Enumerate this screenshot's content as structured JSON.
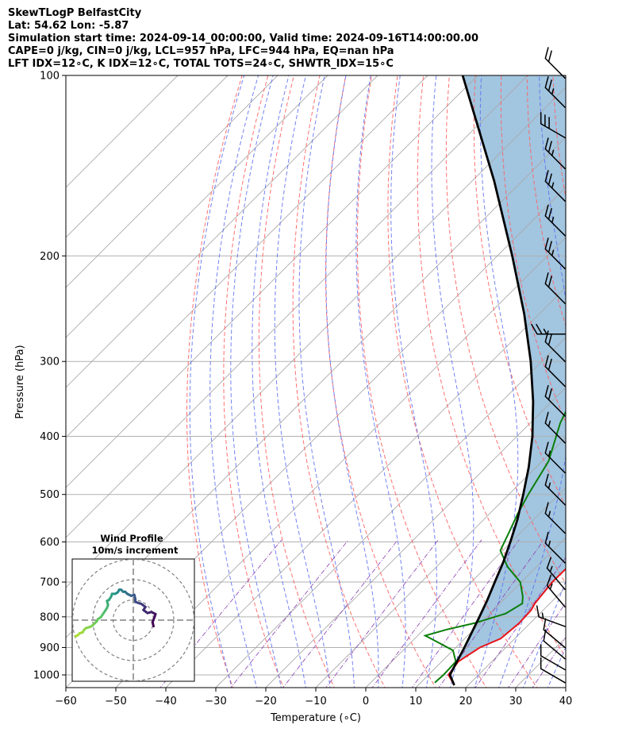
{
  "header": {
    "line1": "SkewTLogP BelfastCity",
    "line2": "Lat: 54.62   Lon: -5.87",
    "line3": "Simulation start time: 2024-09-14_00:00:00, Valid time: 2024-09-16T14:00:00.00",
    "line4": "CAPE=0 j/kg, CIN=0 j/kg, LCL=957 hPa, LFC=944 hPa, EQ=nan hPa",
    "line5": "LFT IDX=12∘C, K IDX=12∘C, TOTAL TOTS=24∘C, SHWTR_IDX=15∘C"
  },
  "chart_data": {
    "type": "skewt",
    "xlabel": "Temperature (∘C)",
    "ylabel": "Pressure (hPa)",
    "xlim": [
      -60,
      40
    ],
    "ylim": [
      1050,
      100
    ],
    "x_ticks": [
      "−60",
      "−50",
      "−40",
      "−30",
      "−20",
      "−10",
      "0",
      "10",
      "20",
      "30",
      "40"
    ],
    "x_tick_values": [
      -60,
      -50,
      -40,
      -30,
      -20,
      -10,
      0,
      10,
      20,
      30,
      40
    ],
    "y_ticks": [
      "100",
      "200",
      "300",
      "400",
      "500",
      "600",
      "700",
      "800",
      "900",
      "1000"
    ],
    "y_tick_values": [
      100,
      200,
      300,
      400,
      500,
      600,
      700,
      800,
      900,
      1000
    ],
    "temperature": [
      [
        1040,
        17.2
      ],
      [
        1000,
        14
      ],
      [
        950,
        13.3
      ],
      [
        900,
        14.8
      ],
      [
        870,
        17.2
      ],
      [
        820,
        17.8
      ],
      [
        780,
        17.6
      ],
      [
        760,
        17
      ],
      [
        700,
        16.2
      ],
      [
        650,
        16.3
      ],
      [
        600,
        15.5
      ],
      [
        550,
        13.8
      ],
      [
        500,
        11.5
      ],
      [
        450,
        8
      ],
      [
        400,
        3.5
      ],
      [
        350,
        -2.5
      ],
      [
        300,
        -9.5
      ],
      [
        280,
        -12.8
      ],
      [
        260,
        -15.8
      ],
      [
        240,
        -20
      ],
      [
        210,
        -26.7
      ],
      [
        190,
        -31.7
      ],
      [
        180,
        -34
      ],
      [
        170,
        -35
      ],
      [
        160,
        -35.7
      ],
      [
        150,
        -36.5
      ],
      [
        140,
        -37.2
      ],
      [
        130,
        -36.6
      ],
      [
        120,
        -37.5
      ],
      [
        115,
        -36
      ],
      [
        110,
        -35.5
      ],
      [
        105,
        -36.3
      ],
      [
        100,
        -35.7
      ]
    ],
    "dewpoint": [
      [
        1030,
        12.8
      ],
      [
        1000,
        13
      ],
      [
        950,
        12.8
      ],
      [
        910,
        10
      ],
      [
        880,
        5
      ],
      [
        860,
        1.5
      ],
      [
        840,
        4.6
      ],
      [
        820,
        8.8
      ],
      [
        790,
        13.2
      ],
      [
        760,
        14.5
      ],
      [
        740,
        13.2
      ],
      [
        700,
        9.8
      ],
      [
        660,
        4.2
      ],
      [
        620,
        -0.5
      ],
      [
        580,
        -2.3
      ],
      [
        540,
        -4.3
      ],
      [
        500,
        -6.1
      ],
      [
        440,
        -8.7
      ],
      [
        380,
        -14
      ],
      [
        350,
        -16.2
      ],
      [
        320,
        -12.3
      ],
      [
        295,
        -6.3
      ],
      [
        285,
        -6.8
      ],
      [
        270,
        -10.5
      ],
      [
        250,
        -14.2
      ],
      [
        235,
        -15
      ],
      [
        210,
        -19.5
      ],
      [
        200,
        -21.5
      ],
      [
        190,
        -23
      ],
      [
        170,
        -27.5
      ],
      [
        150,
        -29.5
      ],
      [
        130,
        -29.3
      ],
      [
        117,
        -26.2
      ],
      [
        113,
        -26.7
      ],
      [
        106,
        -29.2
      ],
      [
        100,
        -29.3
      ]
    ],
    "parcel": [
      [
        1040,
        17.2
      ],
      [
        1000,
        14.3
      ],
      [
        957,
        13.2
      ],
      [
        900,
        11.7
      ],
      [
        850,
        10.2
      ],
      [
        800,
        8.6
      ],
      [
        750,
        6.8
      ],
      [
        700,
        4.7
      ],
      [
        650,
        2.5
      ],
      [
        600,
        -0.2
      ],
      [
        550,
        -3.3
      ],
      [
        500,
        -7.1
      ],
      [
        450,
        -11.5
      ],
      [
        400,
        -16.9
      ],
      [
        350,
        -23.7
      ],
      [
        300,
        -32.2
      ],
      [
        250,
        -43
      ],
      [
        200,
        -57
      ],
      [
        150,
        -75.6
      ],
      [
        100,
        -103
      ]
    ],
    "wind_barbs": [
      {
        "p": 1030,
        "speed_kt": 10,
        "dir": 300
      },
      {
        "p": 980,
        "speed_kt": 10,
        "dir": 300
      },
      {
        "p": 940,
        "speed_kt": 10,
        "dir": 310
      },
      {
        "p": 900,
        "speed_kt": 10,
        "dir": 310
      },
      {
        "p": 830,
        "speed_kt": 15,
        "dir": 290
      },
      {
        "p": 770,
        "speed_kt": 15,
        "dir": 320
      },
      {
        "p": 720,
        "speed_kt": 15,
        "dir": 320
      },
      {
        "p": 650,
        "speed_kt": 15,
        "dir": 315
      },
      {
        "p": 580,
        "speed_kt": 15,
        "dir": 315
      },
      {
        "p": 520,
        "speed_kt": 15,
        "dir": 315
      },
      {
        "p": 460,
        "speed_kt": 15,
        "dir": 315
      },
      {
        "p": 410,
        "speed_kt": 15,
        "dir": 315
      },
      {
        "p": 370,
        "speed_kt": 20,
        "dir": 315
      },
      {
        "p": 330,
        "speed_kt": 20,
        "dir": 315
      },
      {
        "p": 300,
        "speed_kt": 20,
        "dir": 315
      },
      {
        "p": 270,
        "speed_kt": 25,
        "dir": 270
      },
      {
        "p": 240,
        "speed_kt": 20,
        "dir": 315
      },
      {
        "p": 210,
        "speed_kt": 25,
        "dir": 315
      },
      {
        "p": 185,
        "speed_kt": 25,
        "dir": 315
      },
      {
        "p": 162,
        "speed_kt": 25,
        "dir": 315
      },
      {
        "p": 143,
        "speed_kt": 25,
        "dir": 315
      },
      {
        "p": 127,
        "speed_kt": 30,
        "dir": 300
      },
      {
        "p": 113,
        "speed_kt": 25,
        "dir": 315
      },
      {
        "p": 101,
        "speed_kt": 20,
        "dir": 315
      }
    ],
    "hodograph": {
      "title_line1": "Wind Profile",
      "title_line2": "10m/s increment",
      "points": [
        [
          10,
          -3
        ],
        [
          9.5,
          -1
        ],
        [
          10.5,
          1.5
        ],
        [
          11,
          3
        ],
        [
          9,
          4
        ],
        [
          7,
          3.5
        ],
        [
          5,
          5
        ],
        [
          6,
          6.5
        ],
        [
          4,
          8
        ],
        [
          2.5,
          8.5
        ],
        [
          1,
          9
        ],
        [
          1,
          10.5
        ],
        [
          0.5,
          12.5
        ],
        [
          -1,
          12
        ],
        [
          -2,
          12.5
        ],
        [
          -3,
          13
        ],
        [
          -4,
          14
        ],
        [
          -5,
          14
        ],
        [
          -6,
          15
        ],
        [
          -7,
          15
        ],
        [
          -7.5,
          14
        ],
        [
          -8,
          13.5
        ],
        [
          -9,
          13
        ],
        [
          -10.5,
          13
        ],
        [
          -11,
          11.5
        ],
        [
          -12,
          10
        ],
        [
          -13,
          9.5
        ],
        [
          -12.5,
          7.5
        ],
        [
          -13,
          6
        ],
        [
          -14,
          4.5
        ],
        [
          -15,
          3
        ],
        [
          -16,
          1.5
        ],
        [
          -17.5,
          0.5
        ],
        [
          -18,
          -0.5
        ],
        [
          -19,
          -1.5
        ],
        [
          -20,
          -2.5
        ],
        [
          -21,
          -3.2
        ],
        [
          -22,
          -3.5
        ],
        [
          -23.5,
          -4
        ],
        [
          -24.5,
          -5
        ],
        [
          -25,
          -6
        ],
        [
          -26.5,
          -6.5
        ],
        [
          -27.5,
          -7.5
        ],
        [
          -28.5,
          -8
        ]
      ]
    }
  }
}
